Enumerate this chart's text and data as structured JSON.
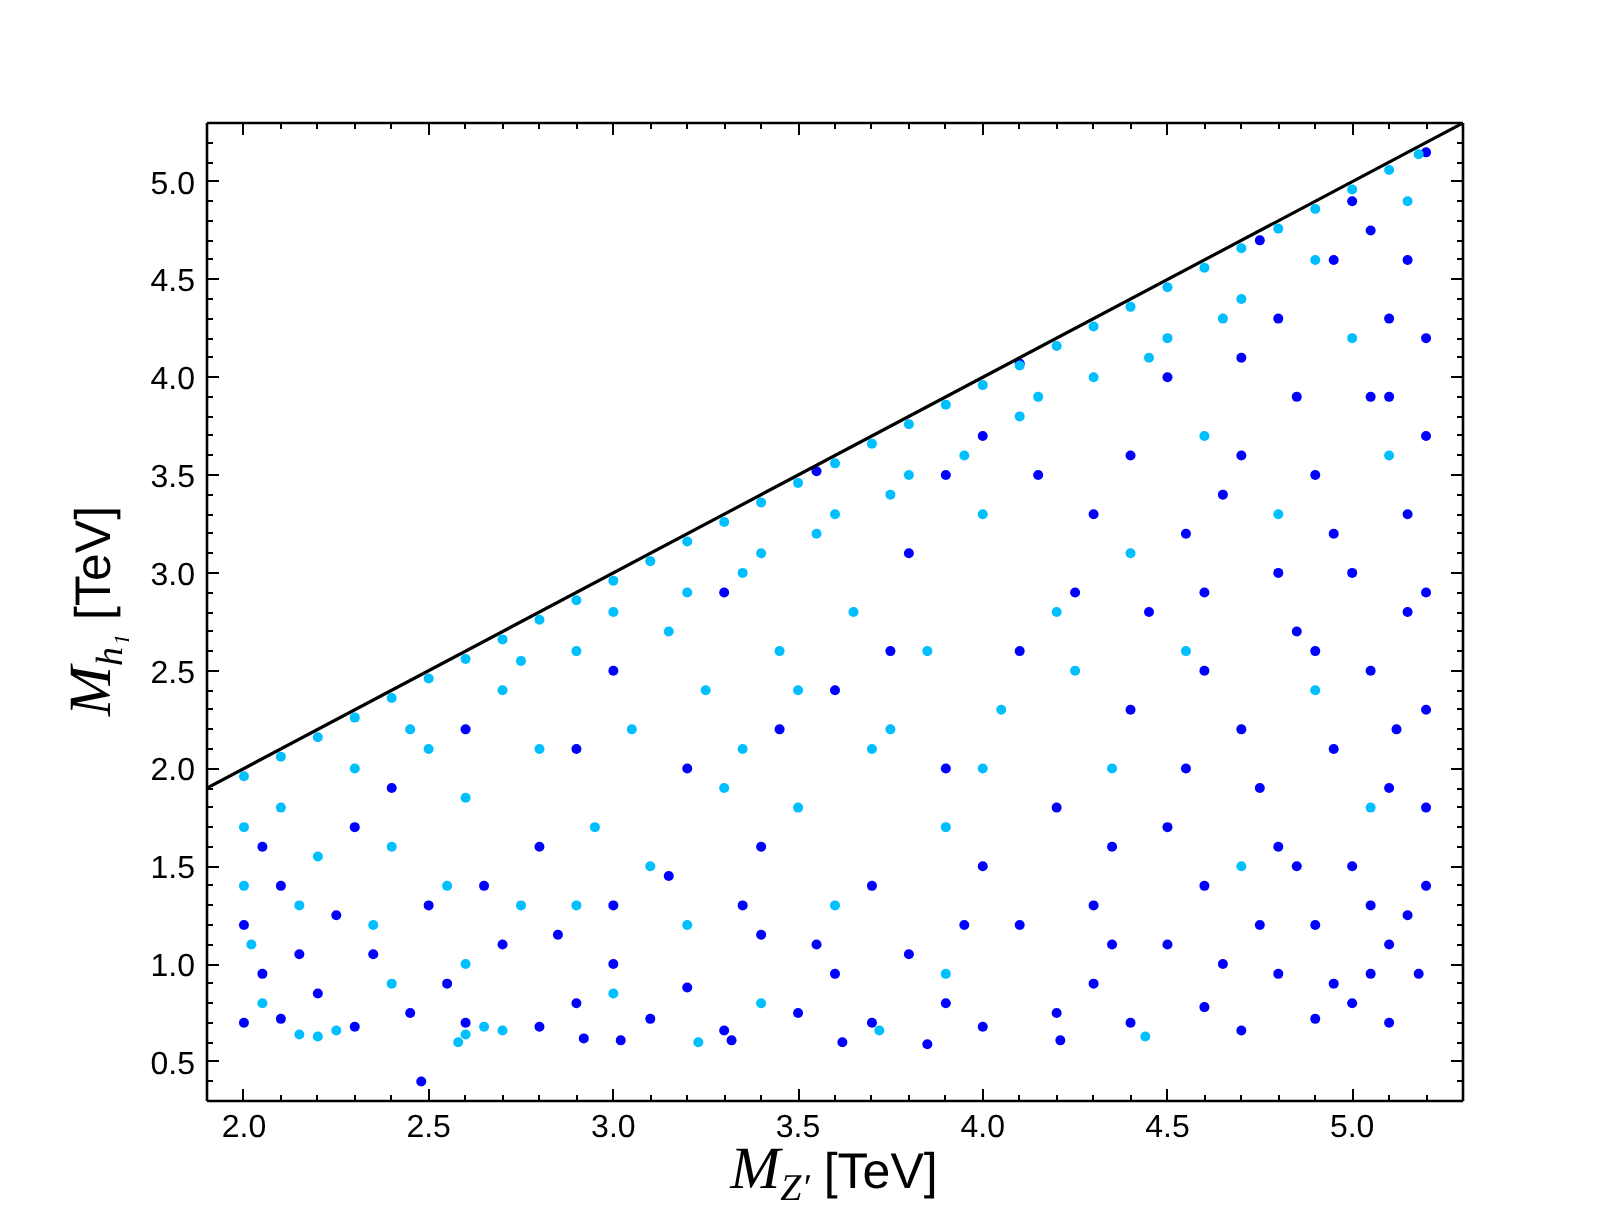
{
  "chart_data": {
    "type": "scatter",
    "marker": "circle",
    "xlabel": "M$_{Z′}$ [TeV]",
    "ylabel": "M$_{h₁}$ [TeV]",
    "xlim": [
      1.9,
      5.3
    ],
    "ylim": [
      0.3,
      5.3
    ],
    "xticks": [
      {
        "value": 2,
        "label": "2.0"
      },
      {
        "value": 2.1,
        "label": null
      },
      {
        "value": 2.2,
        "label": null
      },
      {
        "value": 2.3,
        "label": null
      },
      {
        "value": 2.4,
        "label": null
      },
      {
        "value": 2.5,
        "label": "2.5"
      },
      {
        "value": 2.6,
        "label": null
      },
      {
        "value": 2.7,
        "label": null
      },
      {
        "value": 2.8,
        "label": null
      },
      {
        "value": 2.9,
        "label": null
      },
      {
        "value": 3,
        "label": "3.0"
      },
      {
        "value": 3.1,
        "label": null
      },
      {
        "value": 3.2,
        "label": null
      },
      {
        "value": 3.3,
        "label": null
      },
      {
        "value": 3.4,
        "label": null
      },
      {
        "value": 3.5,
        "label": "3.5"
      },
      {
        "value": 3.6,
        "label": null
      },
      {
        "value": 3.7,
        "label": null
      },
      {
        "value": 3.8,
        "label": null
      },
      {
        "value": 3.9,
        "label": null
      },
      {
        "value": 4,
        "label": "4.0"
      },
      {
        "value": 4.1,
        "label": null
      },
      {
        "value": 4.2,
        "label": null
      },
      {
        "value": 4.3,
        "label": null
      },
      {
        "value": 4.4,
        "label": null
      },
      {
        "value": 4.5,
        "label": "4.5"
      },
      {
        "value": 4.6,
        "label": null
      },
      {
        "value": 4.7,
        "label": null
      },
      {
        "value": 4.8,
        "label": null
      },
      {
        "value": 4.9,
        "label": null
      },
      {
        "value": 5,
        "label": "5.0"
      },
      {
        "value": 5.1,
        "label": null
      },
      {
        "value": 5.2,
        "label": null
      }
    ],
    "yticks": [
      {
        "value": 0.4,
        "label": null
      },
      {
        "value": 0.5,
        "label": "0.5"
      },
      {
        "value": 0.6,
        "label": null
      },
      {
        "value": 0.7,
        "label": null
      },
      {
        "value": 0.8,
        "label": null
      },
      {
        "value": 0.9,
        "label": null
      },
      {
        "value": 1,
        "label": "1.0"
      },
      {
        "value": 1.1,
        "label": null
      },
      {
        "value": 1.2,
        "label": null
      },
      {
        "value": 1.3,
        "label": null
      },
      {
        "value": 1.4,
        "label": null
      },
      {
        "value": 1.5,
        "label": "1.5"
      },
      {
        "value": 1.6,
        "label": null
      },
      {
        "value": 1.7,
        "label": null
      },
      {
        "value": 1.8,
        "label": null
      },
      {
        "value": 1.9,
        "label": null
      },
      {
        "value": 2,
        "label": "2.0"
      },
      {
        "value": 2.1,
        "label": null
      },
      {
        "value": 2.2,
        "label": null
      },
      {
        "value": 2.3,
        "label": null
      },
      {
        "value": 2.4,
        "label": null
      },
      {
        "value": 2.5,
        "label": "2.5"
      },
      {
        "value": 2.6,
        "label": null
      },
      {
        "value": 2.7,
        "label": null
      },
      {
        "value": 2.8,
        "label": null
      },
      {
        "value": 2.9,
        "label": null
      },
      {
        "value": 3,
        "label": "3.0"
      },
      {
        "value": 3.1,
        "label": null
      },
      {
        "value": 3.2,
        "label": null
      },
      {
        "value": 3.3,
        "label": null
      },
      {
        "value": 3.4,
        "label": null
      },
      {
        "value": 3.5,
        "label": "3.5"
      },
      {
        "value": 3.6,
        "label": null
      },
      {
        "value": 3.7,
        "label": null
      },
      {
        "value": 3.8,
        "label": null
      },
      {
        "value": 3.9,
        "label": null
      },
      {
        "value": 4,
        "label": "4.0"
      },
      {
        "value": 4.1,
        "label": null
      },
      {
        "value": 4.2,
        "label": null
      },
      {
        "value": 4.3,
        "label": null
      },
      {
        "value": 4.4,
        "label": null
      },
      {
        "value": 4.5,
        "label": "4.5"
      },
      {
        "value": 4.6,
        "label": null
      },
      {
        "value": 4.7,
        "label": null
      },
      {
        "value": 4.8,
        "label": null
      },
      {
        "value": 4.9,
        "label": null
      },
      {
        "value": 5,
        "label": "5.0"
      },
      {
        "value": 5.1,
        "label": null
      },
      {
        "value": 5.2,
        "label": null
      }
    ],
    "series": [
      {
        "color": "#0000ff",
        "x": [
          2.0,
          2.05,
          2.1,
          2.2,
          2.3,
          2.35,
          2.45,
          2.48,
          2.55,
          2.6,
          2.7,
          2.8,
          2.9,
          2.92,
          3.0,
          3.02,
          3.1,
          3.2,
          3.3,
          3.32,
          3.4,
          3.5,
          3.6,
          3.62,
          3.7,
          3.8,
          3.85,
          3.9,
          4.0,
          4.1,
          4.2,
          4.21,
          4.3,
          4.4,
          4.5,
          4.6,
          4.7,
          4.8,
          4.9,
          5.0,
          5.05,
          5.1,
          2.1,
          2.3,
          2.5,
          2.6,
          2.8,
          3.0,
          3.0,
          3.2,
          3.3,
          3.4,
          3.55,
          3.6,
          3.7,
          3.8,
          3.9,
          4.0,
          4.0,
          4.1,
          4.1,
          4.2,
          4.3,
          4.3,
          4.4,
          4.5,
          4.5,
          4.6,
          4.6,
          4.7,
          4.7,
          4.75,
          4.8,
          4.8,
          4.85,
          4.9,
          4.9,
          4.95,
          4.95,
          5.0,
          5.0,
          5.0,
          5.05,
          5.05,
          5.1,
          5.1,
          5.1,
          5.15,
          5.15,
          5.15,
          5.2,
          5.2,
          5.2,
          5.2,
          5.18,
          4.65,
          4.4,
          4.25,
          3.9,
          3.45,
          2.9,
          2.4,
          2.0,
          2.05,
          4.55,
          4.85,
          4.95,
          5.12,
          4.75,
          4.6,
          5.2,
          5.2,
          5.2,
          5.15,
          5.1,
          5.05,
          5.05,
          4.95,
          4.9,
          4.85,
          4.8,
          4.75,
          4.7,
          4.65,
          4.55,
          4.45,
          4.35,
          4.35,
          4.15,
          3.95,
          3.75,
          3.55,
          3.35,
          3.15,
          2.85,
          2.65,
          2.25,
          2.15
        ],
        "values": [
          0.7,
          0.95,
          0.72,
          0.85,
          0.68,
          1.05,
          0.75,
          0.4,
          0.9,
          0.7,
          1.1,
          0.68,
          0.8,
          0.62,
          1.0,
          0.61,
          0.72,
          0.88,
          0.66,
          0.61,
          1.15,
          0.75,
          0.95,
          0.6,
          0.7,
          1.05,
          0.59,
          0.8,
          0.68,
          1.2,
          0.75,
          0.61,
          0.9,
          0.7,
          1.1,
          0.78,
          0.66,
          0.95,
          0.72,
          0.8,
          0.95,
          0.7,
          1.4,
          1.7,
          1.3,
          2.2,
          1.6,
          2.5,
          1.3,
          2.0,
          2.9,
          1.6,
          3.52,
          2.4,
          1.4,
          3.1,
          2.0,
          3.7,
          1.5,
          4.07,
          2.6,
          1.8,
          3.3,
          1.3,
          2.3,
          4.0,
          1.7,
          2.9,
          1.4,
          3.6,
          2.2,
          4.7,
          1.6,
          4.3,
          2.7,
          3.5,
          1.2,
          4.6,
          2.1,
          3.0,
          1.5,
          4.9,
          2.5,
          3.9,
          1.1,
          4.3,
          1.9,
          3.3,
          2.8,
          4.6,
          5.15,
          1.4,
          3.7,
          2.3,
          0.95,
          1.0,
          3.6,
          2.9,
          3.5,
          2.2,
          2.1,
          1.9,
          1.2,
          1.6,
          3.2,
          3.9,
          0.9,
          2.2,
          1.9,
          2.5,
          4.2,
          2.9,
          1.8,
          1.25,
          3.9,
          4.75,
          1.3,
          3.2,
          2.6,
          1.5,
          3.0,
          1.2,
          4.1,
          3.4,
          2.0,
          2.8,
          1.1,
          1.6,
          3.5,
          1.2,
          2.6,
          1.1,
          1.3,
          1.45,
          1.15,
          1.4,
          1.25,
          1.05
        ]
      },
      {
        "color": "#00bfff",
        "x": [
          2.0,
          2.1,
          2.2,
          2.3,
          2.4,
          2.5,
          2.6,
          2.7,
          2.8,
          2.9,
          3.0,
          3.1,
          3.2,
          3.3,
          3.4,
          3.5,
          3.6,
          3.7,
          3.8,
          3.9,
          4.0,
          4.1,
          4.2,
          4.3,
          4.4,
          4.5,
          4.6,
          4.7,
          4.8,
          4.9,
          5.0,
          5.1,
          5.18,
          2.0,
          2.0,
          2.02,
          2.1,
          2.15,
          2.2,
          2.3,
          2.35,
          2.4,
          2.5,
          2.55,
          2.6,
          2.7,
          2.75,
          2.8,
          2.9,
          2.95,
          3.0,
          3.05,
          3.1,
          3.2,
          3.25,
          3.3,
          3.4,
          3.45,
          3.5,
          3.6,
          3.65,
          3.7,
          3.8,
          3.85,
          3.9,
          4.0,
          4.05,
          4.1,
          4.2,
          4.3,
          4.35,
          4.4,
          4.5,
          4.55,
          4.6,
          4.7,
          4.8,
          4.9,
          4.9,
          5.0,
          5.1,
          5.05,
          5.15,
          4.7,
          3.2,
          2.6,
          2.9,
          3.6,
          2.15,
          2.2,
          2.25,
          2.58,
          2.6,
          2.65,
          2.7,
          3.23,
          3.72,
          4.44,
          2.05,
          2.4,
          3.0,
          3.4,
          3.9,
          2.45,
          2.75,
          3.15,
          3.35,
          3.55,
          3.75,
          3.95,
          4.15,
          4.45,
          4.65,
          3.35,
          3.75,
          4.25,
          4.0,
          3.5
        ],
        "values": [
          1.96,
          2.06,
          2.16,
          2.26,
          2.36,
          2.46,
          2.56,
          2.66,
          2.76,
          2.86,
          2.96,
          3.06,
          3.16,
          3.26,
          3.36,
          3.46,
          3.56,
          3.66,
          3.76,
          3.86,
          3.96,
          4.06,
          4.16,
          4.26,
          4.36,
          4.46,
          4.56,
          4.66,
          4.76,
          4.86,
          4.96,
          5.06,
          5.14,
          1.7,
          1.4,
          1.1,
          1.8,
          1.3,
          1.55,
          2.0,
          1.2,
          1.6,
          2.1,
          1.4,
          1.85,
          2.4,
          1.3,
          2.1,
          2.6,
          1.7,
          2.8,
          2.2,
          1.5,
          2.9,
          2.4,
          1.9,
          3.1,
          2.6,
          1.8,
          3.3,
          2.8,
          2.1,
          3.5,
          2.6,
          1.7,
          3.3,
          2.3,
          3.8,
          2.8,
          4.0,
          2.0,
          3.1,
          4.2,
          2.6,
          3.7,
          4.4,
          3.3,
          4.6,
          2.4,
          4.2,
          3.6,
          1.8,
          4.9,
          1.5,
          1.2,
          1.0,
          1.3,
          1.3,
          0.64,
          0.63,
          0.66,
          0.6,
          0.64,
          0.68,
          0.66,
          0.6,
          0.66,
          0.63,
          0.8,
          0.9,
          0.85,
          0.8,
          0.95,
          2.2,
          2.55,
          2.7,
          3.0,
          3.2,
          3.4,
          3.6,
          3.9,
          4.1,
          4.3,
          2.1,
          2.2,
          2.5,
          2.0,
          2.4
        ]
      },
      {
        "type": "line",
        "marker": "none",
        "line_style": "solid",
        "color": "#000000",
        "x": [
          1.9,
          5.3
        ],
        "values": [
          1.9,
          5.3
        ]
      }
    ]
  }
}
